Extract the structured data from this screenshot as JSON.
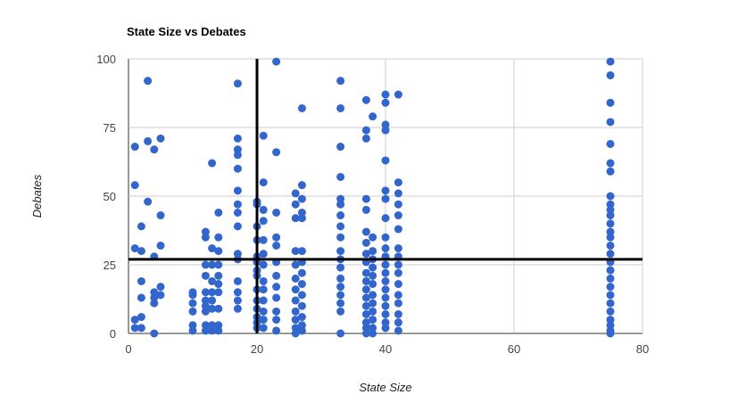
{
  "chart_data": {
    "type": "scatter",
    "title": "State Size vs Debates",
    "xlabel": "State Size",
    "ylabel": "Debates",
    "xlim": [
      0,
      80
    ],
    "ylim": [
      0,
      100
    ],
    "x_ticks": [
      "0",
      "20",
      "40",
      "60",
      "80"
    ],
    "y_ticks": [
      "0",
      "25",
      "50",
      "75",
      "100"
    ],
    "grid": true,
    "legend": "none",
    "point_color": "#3366cc",
    "reference_lines": {
      "x": 20,
      "y": 27,
      "color": "#000000"
    },
    "points": [
      [
        1,
        68
      ],
      [
        1,
        54
      ],
      [
        1,
        31
      ],
      [
        1,
        5
      ],
      [
        1,
        2
      ],
      [
        2,
        39
      ],
      [
        2,
        30
      ],
      [
        2,
        19
      ],
      [
        2,
        13
      ],
      [
        2,
        6
      ],
      [
        2,
        2
      ],
      [
        3,
        92
      ],
      [
        3,
        70
      ],
      [
        3,
        48
      ],
      [
        4,
        67
      ],
      [
        4,
        28
      ],
      [
        4,
        15
      ],
      [
        4,
        13
      ],
      [
        4,
        11
      ],
      [
        4,
        0
      ],
      [
        5,
        71
      ],
      [
        5,
        43
      ],
      [
        5,
        32
      ],
      [
        5,
        17
      ],
      [
        5,
        14
      ],
      [
        10,
        15
      ],
      [
        10,
        14
      ],
      [
        10,
        11
      ],
      [
        10,
        8
      ],
      [
        10,
        3
      ],
      [
        10,
        1
      ],
      [
        12,
        37
      ],
      [
        12,
        35
      ],
      [
        12,
        25
      ],
      [
        12,
        21
      ],
      [
        12,
        15
      ],
      [
        12,
        12
      ],
      [
        12,
        10
      ],
      [
        12,
        8
      ],
      [
        12,
        3
      ],
      [
        12,
        1
      ],
      [
        13,
        62
      ],
      [
        13,
        31
      ],
      [
        13,
        25
      ],
      [
        13,
        19
      ],
      [
        13,
        15
      ],
      [
        13,
        12
      ],
      [
        13,
        9
      ],
      [
        13,
        3
      ],
      [
        13,
        1
      ],
      [
        14,
        44
      ],
      [
        14,
        35
      ],
      [
        14,
        30
      ],
      [
        14,
        25
      ],
      [
        14,
        21
      ],
      [
        14,
        18
      ],
      [
        14,
        15
      ],
      [
        14,
        9
      ],
      [
        14,
        3
      ],
      [
        14,
        1
      ],
      [
        17,
        91
      ],
      [
        17,
        71
      ],
      [
        17,
        67
      ],
      [
        17,
        65
      ],
      [
        17,
        60
      ],
      [
        17,
        52
      ],
      [
        17,
        47
      ],
      [
        17,
        44
      ],
      [
        17,
        39
      ],
      [
        17,
        29
      ],
      [
        17,
        27
      ],
      [
        17,
        19
      ],
      [
        17,
        15
      ],
      [
        17,
        12
      ],
      [
        17,
        9
      ],
      [
        20,
        48
      ],
      [
        20,
        47
      ],
      [
        20,
        39
      ],
      [
        20,
        34
      ],
      [
        20,
        28
      ],
      [
        20,
        26
      ],
      [
        20,
        23
      ],
      [
        20,
        21
      ],
      [
        20,
        16
      ],
      [
        20,
        12
      ],
      [
        20,
        9
      ],
      [
        20,
        6
      ],
      [
        20,
        4
      ],
      [
        20,
        2
      ],
      [
        21,
        72
      ],
      [
        21,
        55
      ],
      [
        21,
        45
      ],
      [
        21,
        41
      ],
      [
        21,
        34
      ],
      [
        21,
        29
      ],
      [
        21,
        25
      ],
      [
        21,
        19
      ],
      [
        21,
        16
      ],
      [
        21,
        12
      ],
      [
        21,
        8
      ],
      [
        21,
        5
      ],
      [
        21,
        2
      ],
      [
        23,
        99
      ],
      [
        23,
        66
      ],
      [
        23,
        44
      ],
      [
        23,
        35
      ],
      [
        23,
        32
      ],
      [
        23,
        26
      ],
      [
        23,
        21
      ],
      [
        23,
        17
      ],
      [
        23,
        13
      ],
      [
        23,
        8
      ],
      [
        23,
        5
      ],
      [
        23,
        1
      ],
      [
        26,
        51
      ],
      [
        26,
        47
      ],
      [
        26,
        42
      ],
      [
        26,
        30
      ],
      [
        26,
        25
      ],
      [
        26,
        20
      ],
      [
        26,
        16
      ],
      [
        26,
        12
      ],
      [
        26,
        8
      ],
      [
        26,
        5
      ],
      [
        26,
        2
      ],
      [
        26,
        0
      ],
      [
        27,
        82
      ],
      [
        27,
        54
      ],
      [
        27,
        49
      ],
      [
        27,
        44
      ],
      [
        27,
        42
      ],
      [
        27,
        30
      ],
      [
        27,
        26
      ],
      [
        27,
        22
      ],
      [
        27,
        18
      ],
      [
        27,
        14
      ],
      [
        27,
        10
      ],
      [
        27,
        6
      ],
      [
        27,
        3
      ],
      [
        27,
        1
      ],
      [
        33,
        92
      ],
      [
        33,
        82
      ],
      [
        33,
        68
      ],
      [
        33,
        57
      ],
      [
        33,
        49
      ],
      [
        33,
        47
      ],
      [
        33,
        43
      ],
      [
        33,
        39
      ],
      [
        33,
        35
      ],
      [
        33,
        30
      ],
      [
        33,
        27
      ],
      [
        33,
        24
      ],
      [
        33,
        20
      ],
      [
        33,
        17
      ],
      [
        33,
        14
      ],
      [
        33,
        11
      ],
      [
        33,
        8
      ],
      [
        33,
        0
      ],
      [
        37,
        85
      ],
      [
        37,
        74
      ],
      [
        37,
        71
      ],
      [
        37,
        49
      ],
      [
        37,
        45
      ],
      [
        37,
        37
      ],
      [
        37,
        33
      ],
      [
        37,
        29
      ],
      [
        37,
        26
      ],
      [
        37,
        22
      ],
      [
        37,
        19
      ],
      [
        37,
        16
      ],
      [
        37,
        13
      ],
      [
        37,
        10
      ],
      [
        37,
        7
      ],
      [
        37,
        4
      ],
      [
        37,
        2
      ],
      [
        37,
        0
      ],
      [
        38,
        79
      ],
      [
        38,
        35
      ],
      [
        38,
        30
      ],
      [
        38,
        27
      ],
      [
        38,
        24
      ],
      [
        38,
        21
      ],
      [
        38,
        18
      ],
      [
        38,
        14
      ],
      [
        38,
        11
      ],
      [
        38,
        8
      ],
      [
        38,
        5
      ],
      [
        38,
        2
      ],
      [
        38,
        0
      ],
      [
        40,
        87
      ],
      [
        40,
        84
      ],
      [
        40,
        76
      ],
      [
        40,
        74
      ],
      [
        40,
        63
      ],
      [
        40,
        52
      ],
      [
        40,
        49
      ],
      [
        40,
        42
      ],
      [
        40,
        35
      ],
      [
        40,
        31
      ],
      [
        40,
        28
      ],
      [
        40,
        25
      ],
      [
        40,
        22
      ],
      [
        40,
        19
      ],
      [
        40,
        16
      ],
      [
        40,
        13
      ],
      [
        40,
        10
      ],
      [
        40,
        7
      ],
      [
        40,
        4
      ],
      [
        40,
        2
      ],
      [
        42,
        87
      ],
      [
        42,
        55
      ],
      [
        42,
        51
      ],
      [
        42,
        47
      ],
      [
        42,
        43
      ],
      [
        42,
        38
      ],
      [
        42,
        31
      ],
      [
        42,
        28
      ],
      [
        42,
        25
      ],
      [
        42,
        22
      ],
      [
        42,
        18
      ],
      [
        42,
        14
      ],
      [
        42,
        11
      ],
      [
        42,
        7
      ],
      [
        42,
        4
      ],
      [
        42,
        1
      ],
      [
        75,
        99
      ],
      [
        75,
        94
      ],
      [
        75,
        84
      ],
      [
        75,
        77
      ],
      [
        75,
        69
      ],
      [
        75,
        62
      ],
      [
        75,
        59
      ],
      [
        75,
        50
      ],
      [
        75,
        47
      ],
      [
        75,
        45
      ],
      [
        75,
        43
      ],
      [
        75,
        40
      ],
      [
        75,
        37
      ],
      [
        75,
        35
      ],
      [
        75,
        32
      ],
      [
        75,
        29
      ],
      [
        75,
        26
      ],
      [
        75,
        23
      ],
      [
        75,
        20
      ],
      [
        75,
        17
      ],
      [
        75,
        14
      ],
      [
        75,
        11
      ],
      [
        75,
        8
      ],
      [
        75,
        5
      ],
      [
        75,
        3
      ],
      [
        75,
        1
      ],
      [
        75,
        0
      ]
    ]
  }
}
